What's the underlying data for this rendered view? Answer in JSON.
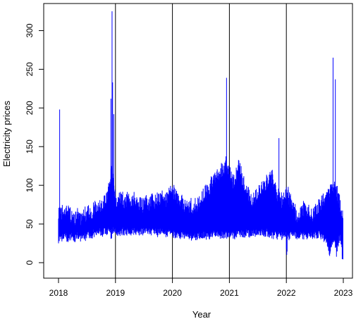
{
  "chart_data": {
    "type": "line",
    "title": "",
    "xlabel": "Year",
    "ylabel": "Electricity prices",
    "xlim": [
      2018,
      2023
    ],
    "ylim": [
      0,
      325
    ],
    "x_ticks": [
      2018,
      2019,
      2020,
      2021,
      2022,
      2023
    ],
    "x_tick_labels": [
      "2018",
      "2019",
      "2020",
      "2021",
      "2022",
      "2023"
    ],
    "y_ticks": [
      0,
      50,
      100,
      150,
      200,
      250,
      300
    ],
    "y_tick_labels": [
      "0",
      "50",
      "100",
      "150",
      "200",
      "250",
      "300"
    ],
    "vertical_reference_lines": [
      2019,
      2020,
      2021,
      2022
    ],
    "grid": false,
    "legend": "none",
    "series": [
      {
        "color": "#0000ff",
        "x": [
          2018.0,
          2018.02,
          2018.04,
          2018.06,
          2018.08,
          2018.1,
          2018.12,
          2018.14,
          2018.16,
          2018.18,
          2018.2,
          2018.22,
          2018.24,
          2018.26,
          2018.28,
          2018.3,
          2018.32,
          2018.34,
          2018.36,
          2018.38,
          2018.4,
          2018.42,
          2018.44,
          2018.46,
          2018.48,
          2018.5,
          2018.52,
          2018.54,
          2018.56,
          2018.58,
          2018.6,
          2018.62,
          2018.64,
          2018.66,
          2018.68,
          2018.7,
          2018.72,
          2018.74,
          2018.76,
          2018.78,
          2018.8,
          2018.82,
          2018.84,
          2018.86,
          2018.88,
          2018.9,
          2018.92,
          2018.94,
          2018.96,
          2018.98,
          2019.0,
          2019.02,
          2019.04,
          2019.06,
          2019.08,
          2019.1,
          2019.12,
          2019.14,
          2019.16,
          2019.18,
          2019.2,
          2019.22,
          2019.24,
          2019.26,
          2019.28,
          2019.3,
          2019.32,
          2019.34,
          2019.36,
          2019.38,
          2019.4,
          2019.42,
          2019.44,
          2019.46,
          2019.48,
          2019.5,
          2019.52,
          2019.54,
          2019.56,
          2019.58,
          2019.6,
          2019.62,
          2019.64,
          2019.66,
          2019.68,
          2019.7,
          2019.72,
          2019.74,
          2019.76,
          2019.78,
          2019.8,
          2019.82,
          2019.84,
          2019.86,
          2019.88,
          2019.9,
          2019.92,
          2019.94,
          2019.96,
          2019.98,
          2020.0,
          2020.02,
          2020.04,
          2020.06,
          2020.08,
          2020.1,
          2020.12,
          2020.14,
          2020.16,
          2020.18,
          2020.2,
          2020.22,
          2020.24,
          2020.26,
          2020.28,
          2020.3,
          2020.32,
          2020.34,
          2020.36,
          2020.38,
          2020.4,
          2020.42,
          2020.44,
          2020.46,
          2020.48,
          2020.5,
          2020.52,
          2020.54,
          2020.56,
          2020.58,
          2020.6,
          2020.62,
          2020.64,
          2020.66,
          2020.68,
          2020.7,
          2020.72,
          2020.74,
          2020.76,
          2020.78,
          2020.8,
          2020.82,
          2020.84,
          2020.86,
          2020.88,
          2020.9,
          2020.92,
          2020.94,
          2020.96,
          2020.98,
          2021.0,
          2021.02,
          2021.04,
          2021.06,
          2021.08,
          2021.1,
          2021.12,
          2021.14,
          2021.16,
          2021.18,
          2021.2,
          2021.22,
          2021.24,
          2021.26,
          2021.28,
          2021.3,
          2021.32,
          2021.34,
          2021.36,
          2021.38,
          2021.4,
          2021.42,
          2021.44,
          2021.46,
          2021.48,
          2021.5,
          2021.52,
          2021.54,
          2021.56,
          2021.58,
          2021.6,
          2021.62,
          2021.64,
          2021.66,
          2021.68,
          2021.7,
          2021.72,
          2021.74,
          2021.76,
          2021.78,
          2021.8,
          2021.82,
          2021.84,
          2021.86,
          2021.88,
          2021.9,
          2021.92,
          2021.94,
          2021.96,
          2021.98,
          2022.0,
          2022.02,
          2022.04,
          2022.06,
          2022.08,
          2022.1,
          2022.12,
          2022.14,
          2022.16,
          2022.18,
          2022.2,
          2022.22,
          2022.24,
          2022.26,
          2022.28,
          2022.3,
          2022.32,
          2022.34,
          2022.36,
          2022.38,
          2022.4,
          2022.42,
          2022.44,
          2022.46,
          2022.48,
          2022.5,
          2022.52,
          2022.54,
          2022.56,
          2022.58,
          2022.6,
          2022.62,
          2022.64,
          2022.66,
          2022.68,
          2022.7,
          2022.72,
          2022.74,
          2022.76,
          2022.78,
          2022.8,
          2022.82,
          2022.84,
          2022.86,
          2022.88,
          2022.9,
          2022.92,
          2022.94,
          2022.96,
          2022.98
        ],
        "y_low": [
          25,
          28,
          30,
          27,
          26,
          28,
          29,
          27,
          26,
          25,
          28,
          30,
          29,
          27,
          26,
          28,
          30,
          29,
          28,
          27,
          30,
          31,
          29,
          28,
          30,
          31,
          32,
          30,
          29,
          31,
          33,
          32,
          31,
          33,
          34,
          33,
          35,
          34,
          33,
          35,
          36,
          35,
          34,
          36,
          37,
          38,
          30,
          35,
          36,
          37,
          34,
          35,
          33,
          32,
          34,
          35,
          36,
          35,
          34,
          33,
          35,
          34,
          33,
          34,
          35,
          36,
          35,
          34,
          33,
          35,
          36,
          34,
          35,
          36,
          35,
          34,
          35,
          36,
          37,
          36,
          35,
          34,
          36,
          37,
          36,
          35,
          34,
          33,
          35,
          34,
          33,
          34,
          35,
          34,
          33,
          32,
          34,
          33,
          32,
          33,
          30,
          32,
          31,
          30,
          32,
          31,
          30,
          29,
          30,
          31,
          30,
          29,
          28,
          29,
          30,
          29,
          28,
          29,
          30,
          29,
          28,
          29,
          30,
          31,
          30,
          29,
          30,
          31,
          30,
          29,
          30,
          31,
          30,
          29,
          30,
          31,
          32,
          31,
          30,
          31,
          32,
          31,
          30,
          31,
          32,
          31,
          30,
          31,
          32,
          31,
          30,
          31,
          32,
          31,
          30,
          31,
          32,
          33,
          32,
          31,
          32,
          33,
          32,
          31,
          32,
          33,
          32,
          31,
          32,
          33,
          34,
          33,
          32,
          33,
          34,
          33,
          32,
          33,
          34,
          33,
          32,
          33,
          34,
          33,
          32,
          30,
          31,
          30,
          29,
          30,
          31,
          30,
          29,
          30,
          31,
          30,
          29,
          30,
          31,
          30,
          8,
          28,
          29,
          30,
          31,
          30,
          29,
          30,
          31,
          30,
          29,
          30,
          31,
          30,
          29,
          30,
          31,
          30,
          29,
          30,
          31,
          30,
          29,
          30,
          31,
          30,
          29,
          30,
          31,
          30,
          29,
          28,
          27,
          26,
          25,
          20,
          15,
          8,
          5,
          12,
          20,
          25,
          22,
          15,
          5,
          20,
          25,
          28,
          20,
          3
        ],
        "y_high": [
          77,
          80,
          82,
          75,
          72,
          70,
          73,
          85,
          80,
          78,
          74,
          70,
          72,
          70,
          68,
          70,
          72,
          73,
          70,
          68,
          72,
          74,
          76,
          73,
          72,
          74,
          76,
          75,
          74,
          76,
          78,
          80,
          82,
          80,
          78,
          80,
          82,
          84,
          86,
          88,
          90,
          92,
          95,
          100,
          110,
          120,
          140,
          125,
          110,
          100,
          95,
          90,
          92,
          94,
          96,
          95,
          92,
          90,
          88,
          90,
          92,
          94,
          92,
          90,
          88,
          90,
          92,
          90,
          88,
          86,
          88,
          90,
          88,
          86,
          84,
          86,
          88,
          90,
          88,
          86,
          88,
          90,
          92,
          90,
          88,
          90,
          92,
          94,
          92,
          90,
          92,
          94,
          96,
          94,
          92,
          94,
          96,
          98,
          100,
          98,
          100,
          102,
          100,
          98,
          96,
          94,
          92,
          90,
          88,
          86,
          84,
          82,
          80,
          82,
          84,
          86,
          84,
          82,
          80,
          82,
          84,
          86,
          88,
          90,
          92,
          94,
          96,
          98,
          100,
          102,
          104,
          106,
          108,
          110,
          112,
          114,
          116,
          118,
          120,
          122,
          124,
          126,
          128,
          130,
          132,
          134,
          136,
          138,
          140,
          130,
          125,
          120,
          118,
          116,
          118,
          120,
          125,
          130,
          135,
          130,
          125,
          120,
          115,
          110,
          105,
          100,
          98,
          96,
          94,
          92,
          90,
          92,
          94,
          96,
          98,
          100,
          102,
          104,
          106,
          108,
          110,
          112,
          114,
          116,
          118,
          120,
          125,
          120,
          115,
          110,
          105,
          100,
          98,
          96,
          94,
          92,
          90,
          92,
          94,
          96,
          98,
          100,
          95,
          90,
          85,
          80,
          78,
          76,
          74,
          72,
          70,
          72,
          74,
          76,
          78,
          80,
          82,
          80,
          78,
          76,
          74,
          72,
          70,
          72,
          74,
          76,
          78,
          80,
          82,
          84,
          86,
          88,
          90,
          92,
          94,
          96,
          98,
          100,
          102,
          104,
          106,
          108,
          110,
          105,
          100,
          95,
          90,
          85,
          80,
          75
        ],
        "spikes": [
          {
            "x": 2018.02,
            "y": 198
          },
          {
            "x": 2018.92,
            "y": 212
          },
          {
            "x": 2018.94,
            "y": 325
          },
          {
            "x": 2018.95,
            "y": 233
          },
          {
            "x": 2018.97,
            "y": 192
          },
          {
            "x": 2020.95,
            "y": 239
          },
          {
            "x": 2021.87,
            "y": 161
          },
          {
            "x": 2022.82,
            "y": 265
          },
          {
            "x": 2022.86,
            "y": 237
          }
        ]
      }
    ]
  }
}
